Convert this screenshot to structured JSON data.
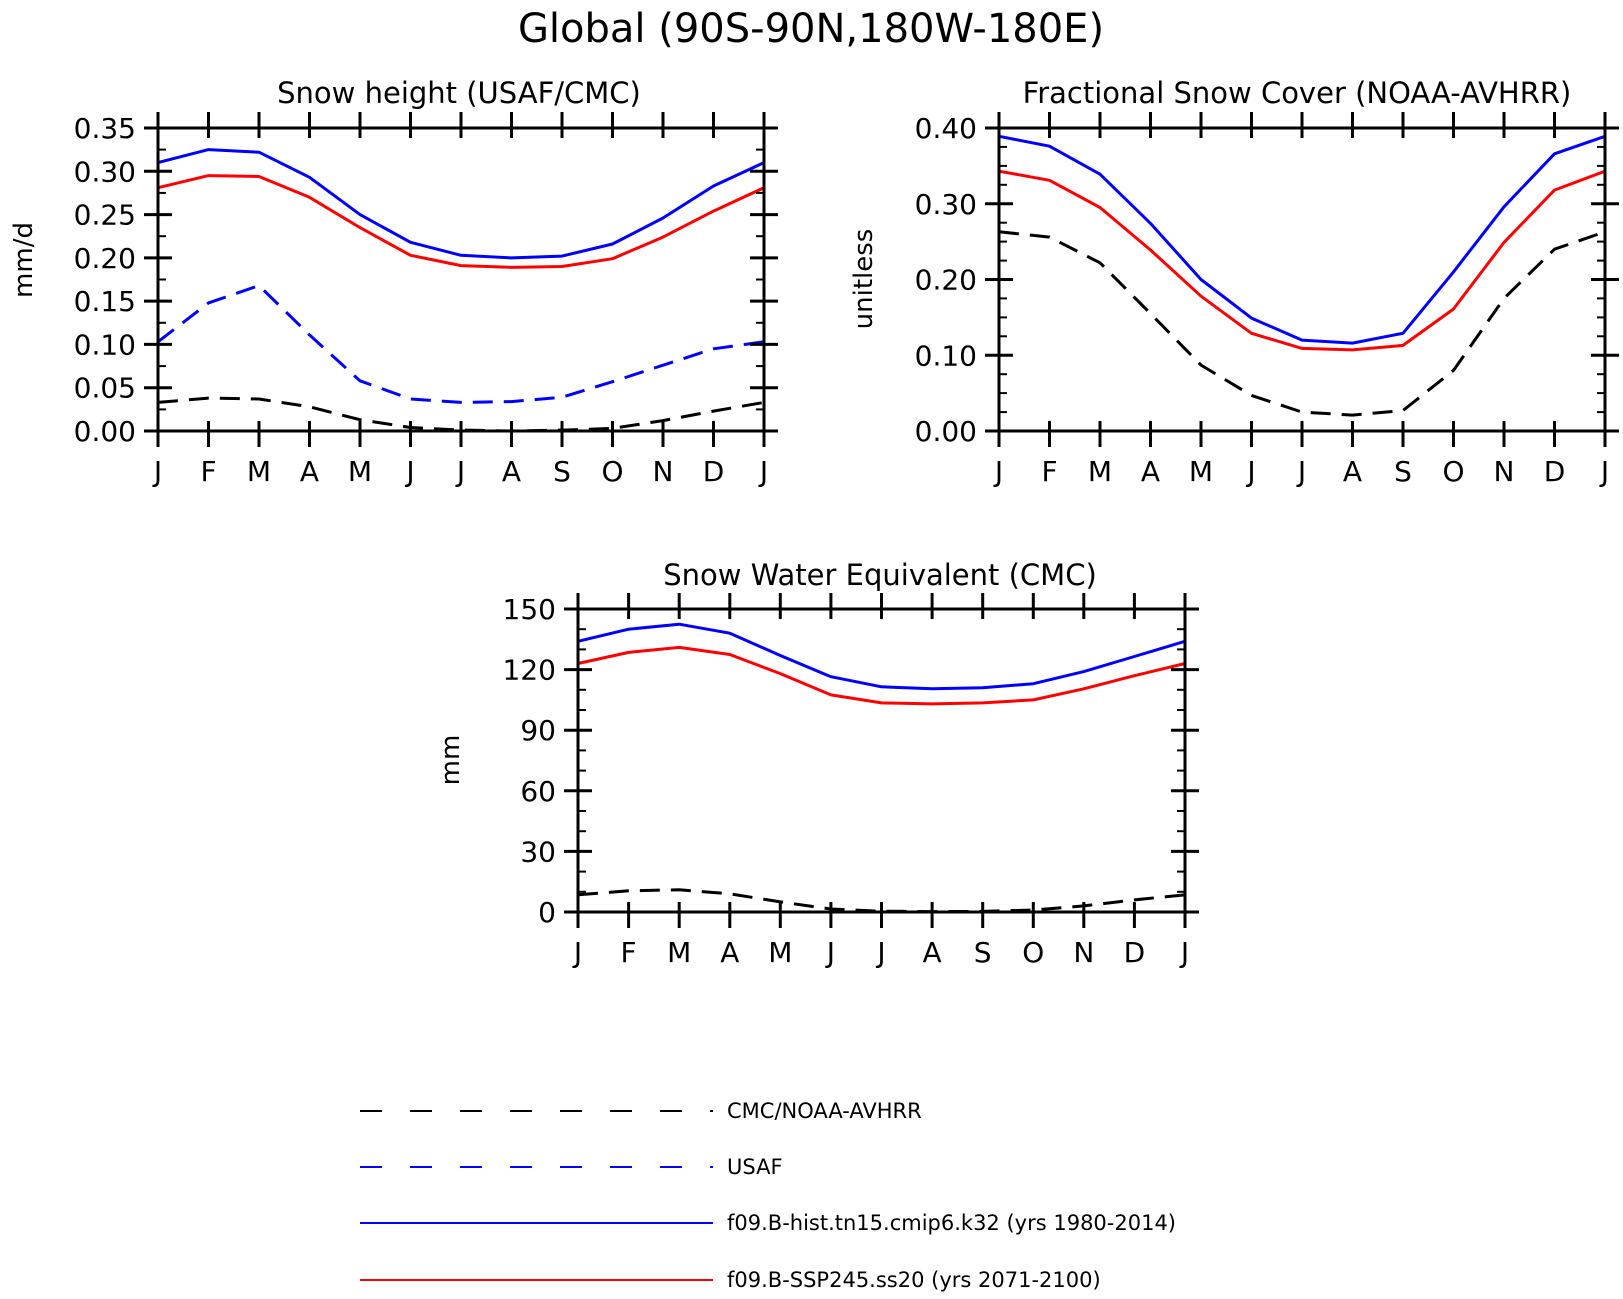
{
  "figure_title": "Global (90S-90N,180W-180E)",
  "month_labels": [
    "J",
    "F",
    "M",
    "A",
    "M",
    "J",
    "J",
    "A",
    "S",
    "O",
    "N",
    "D",
    "J"
  ],
  "colors": {
    "obs": "#000000",
    "usaf": "#0000ff",
    "hist": "#0000ff",
    "ssp": "#ff0000"
  },
  "legend": [
    {
      "key": "obs",
      "label": "CMC/NOAA-AVHRR",
      "color": "#000000",
      "dash": true
    },
    {
      "key": "usaf",
      "label": "USAF",
      "color": "#0000ff",
      "dash": true
    },
    {
      "key": "hist",
      "label": "f09.B-hist.tn15.cmip6.k32 (yrs 1980-2014)",
      "color": "#0000ff",
      "dash": false
    },
    {
      "key": "ssp",
      "label": "f09.B-SSP245.ss20 (yrs 2071-2100)",
      "color": "#ff0000",
      "dash": false
    }
  ],
  "chart_data": [
    {
      "type": "line",
      "title": "Snow height (USAF/CMC)",
      "ylabel": "mm/d",
      "xlabel": "",
      "ylim": [
        0,
        0.35
      ],
      "yticks": [
        0,
        0.05,
        0.1,
        0.15,
        0.2,
        0.25,
        0.3,
        0.35
      ],
      "ytick_labels": [
        "0.00",
        "0.05",
        "0.10",
        "0.15",
        "0.20",
        "0.25",
        "0.30",
        "0.35"
      ],
      "y_minor_step": 0.025,
      "categories": [
        "J",
        "F",
        "M",
        "A",
        "M",
        "J",
        "J",
        "A",
        "S",
        "O",
        "N",
        "D",
        "J"
      ],
      "series": [
        {
          "key": "hist",
          "values": [
            0.31,
            0.325,
            0.322,
            0.293,
            0.25,
            0.218,
            0.203,
            0.2,
            0.202,
            0.216,
            0.246,
            0.283,
            0.31
          ]
        },
        {
          "key": "ssp",
          "values": [
            0.281,
            0.295,
            0.294,
            0.27,
            0.235,
            0.203,
            0.191,
            0.189,
            0.19,
            0.199,
            0.224,
            0.254,
            0.281
          ]
        },
        {
          "key": "usaf",
          "values": [
            0.103,
            0.148,
            0.168,
            0.111,
            0.058,
            0.037,
            0.033,
            0.034,
            0.039,
            0.057,
            0.076,
            0.095,
            0.103
          ]
        },
        {
          "key": "obs",
          "values": [
            0.033,
            0.038,
            0.037,
            0.028,
            0.013,
            0.004,
            0.001,
            0.0,
            0.001,
            0.003,
            0.012,
            0.023,
            0.033
          ]
        }
      ]
    },
    {
      "type": "line",
      "title": "Fractional Snow Cover (NOAA-AVHRR)",
      "ylabel": "unitless",
      "xlabel": "",
      "ylim": [
        0,
        0.4
      ],
      "yticks": [
        0,
        0.1,
        0.2,
        0.3,
        0.4
      ],
      "ytick_labels": [
        "0.00",
        "0.10",
        "0.20",
        "0.30",
        "0.40"
      ],
      "y_minor_step": 0.025,
      "categories": [
        "J",
        "F",
        "M",
        "A",
        "M",
        "J",
        "J",
        "A",
        "S",
        "O",
        "N",
        "D",
        "J"
      ],
      "series": [
        {
          "key": "hist",
          "values": [
            0.389,
            0.376,
            0.339,
            0.274,
            0.2,
            0.149,
            0.12,
            0.116,
            0.129,
            0.21,
            0.296,
            0.366,
            0.389
          ]
        },
        {
          "key": "ssp",
          "values": [
            0.343,
            0.331,
            0.295,
            0.239,
            0.178,
            0.129,
            0.109,
            0.107,
            0.113,
            0.161,
            0.249,
            0.318,
            0.343
          ]
        },
        {
          "key": "obs",
          "values": [
            0.263,
            0.256,
            0.222,
            0.155,
            0.087,
            0.047,
            0.025,
            0.021,
            0.027,
            0.08,
            0.175,
            0.24,
            0.263
          ]
        }
      ]
    },
    {
      "type": "line",
      "title": "Snow Water Equivalent (CMC)",
      "ylabel": "mm",
      "xlabel": "",
      "ylim": [
        0,
        150
      ],
      "yticks": [
        0,
        30,
        60,
        90,
        120,
        150
      ],
      "ytick_labels": [
        "0",
        "30",
        "60",
        "90",
        "120",
        "150"
      ],
      "y_minor_step": 10,
      "categories": [
        "J",
        "F",
        "M",
        "A",
        "M",
        "J",
        "J",
        "A",
        "S",
        "O",
        "N",
        "D",
        "J"
      ],
      "series": [
        {
          "key": "hist",
          "values": [
            134,
            140,
            142.5,
            138,
            127,
            116.5,
            111.5,
            110.5,
            111,
            113,
            119,
            126.5,
            134
          ]
        },
        {
          "key": "ssp",
          "values": [
            123,
            128.5,
            131,
            127.5,
            118,
            107.5,
            103.5,
            103,
            103.5,
            105,
            110.5,
            117,
            123
          ]
        },
        {
          "key": "obs",
          "values": [
            8.5,
            10.5,
            11,
            9,
            5,
            1.5,
            0.4,
            0.2,
            0.3,
            1,
            3,
            6,
            8.5
          ]
        }
      ]
    }
  ]
}
